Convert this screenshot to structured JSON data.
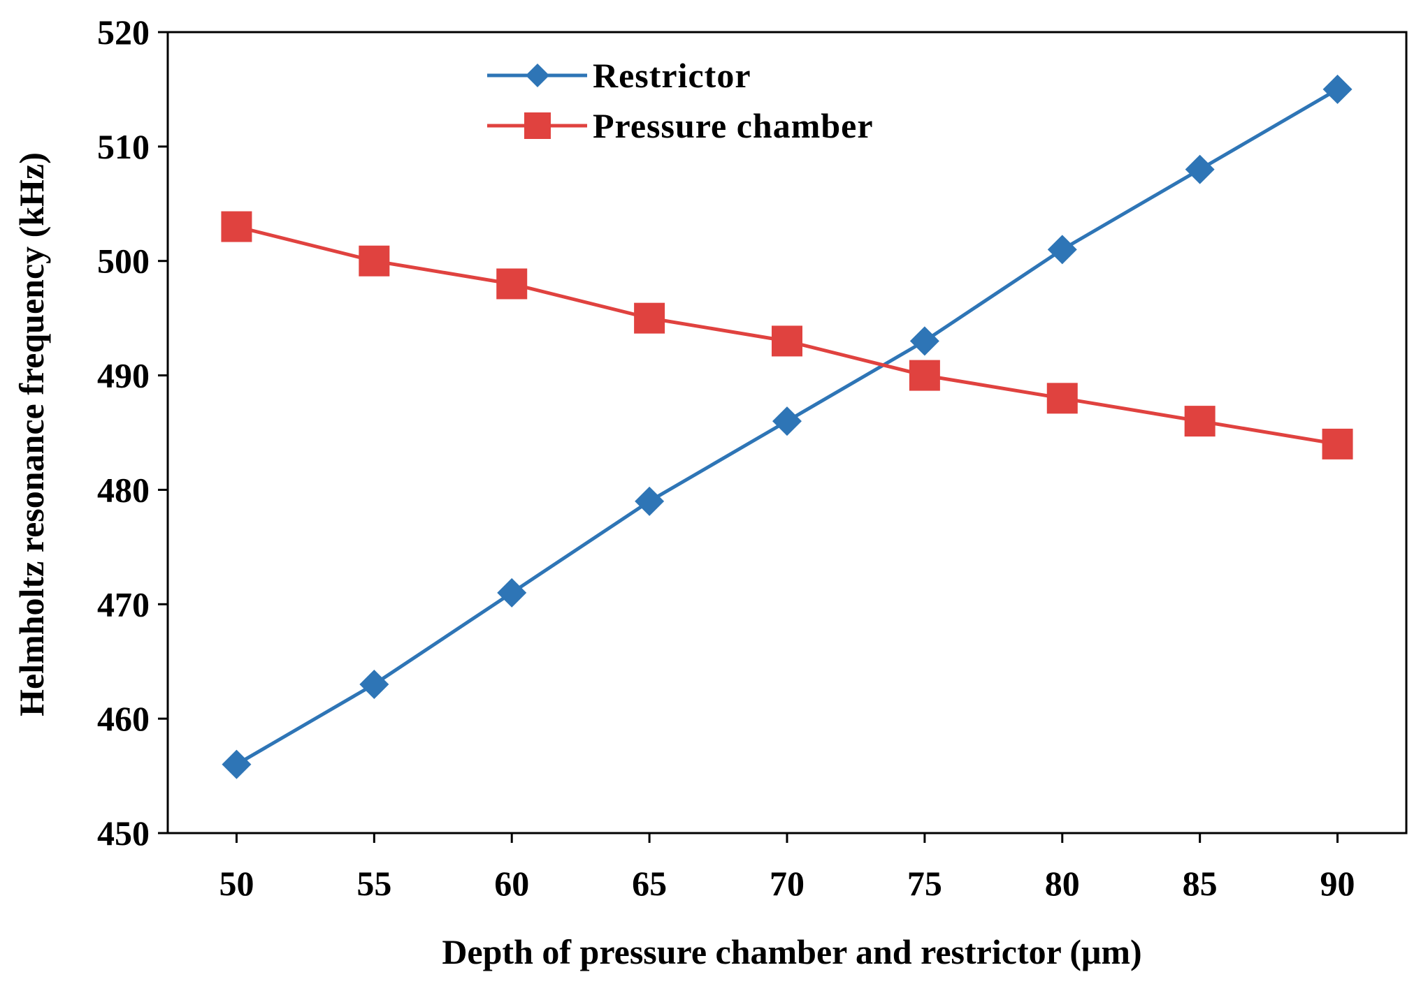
{
  "chart_data": {
    "type": "line",
    "title": "",
    "xlabel": "Depth of pressure chamber and restrictor (μm)",
    "ylabel": "Helmholtz resonance frequency (kHz)",
    "x": [
      50,
      55,
      60,
      65,
      70,
      75,
      80,
      85,
      90
    ],
    "x_tick_labels": [
      "50",
      "55",
      "60",
      "65",
      "70",
      "75",
      "80",
      "85",
      "90"
    ],
    "xlim": [
      47.5,
      92.5
    ],
    "ylim": [
      450,
      520
    ],
    "y_ticks": [
      450,
      460,
      470,
      480,
      490,
      500,
      510,
      520
    ],
    "y_tick_labels": [
      "450",
      "460",
      "470",
      "480",
      "490",
      "500",
      "510",
      "520"
    ],
    "grid": false,
    "legend_position": "top-center",
    "series": [
      {
        "name": "Restrictor",
        "marker": "diamond",
        "color": "#2e75b6",
        "values": [
          456,
          463,
          471,
          479,
          486,
          493,
          501,
          508,
          515
        ]
      },
      {
        "name": "Pressure chamber",
        "marker": "square",
        "color": "#e0423f",
        "values": [
          503,
          500,
          498,
          495,
          493,
          490,
          488,
          486,
          484
        ]
      }
    ]
  }
}
